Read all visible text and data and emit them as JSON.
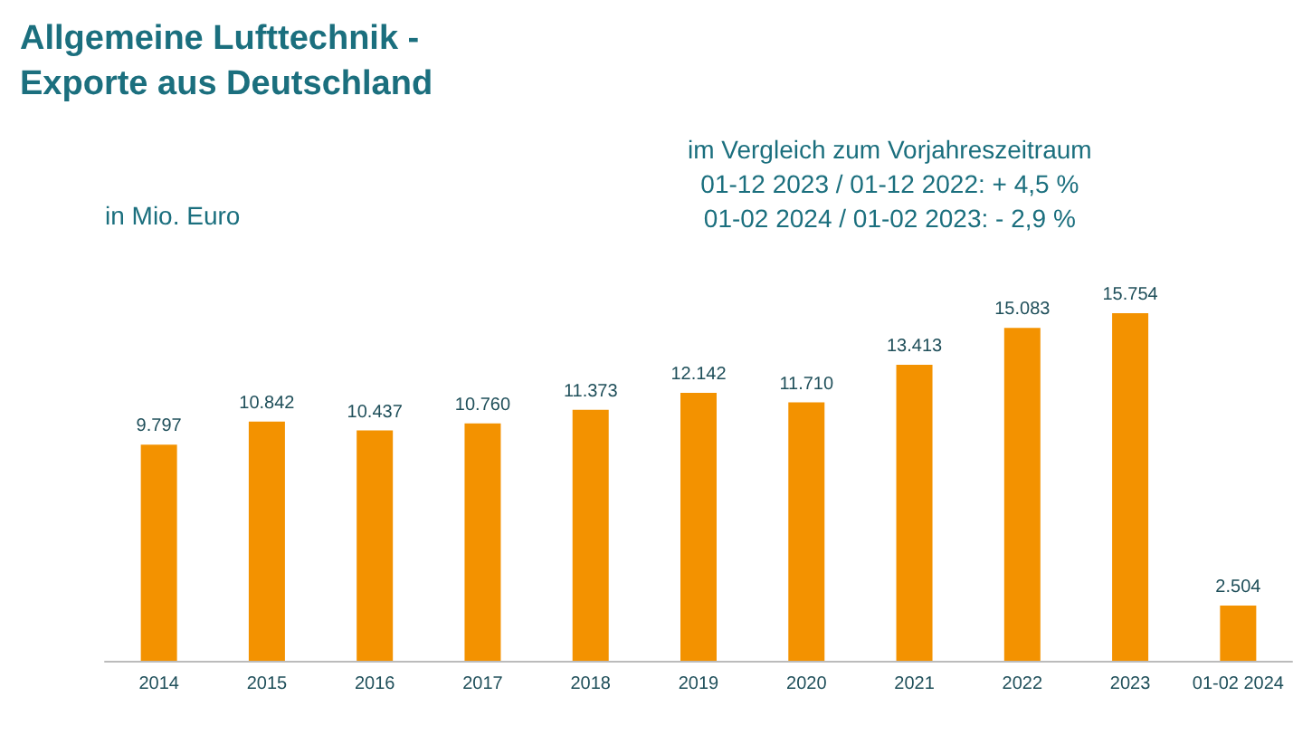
{
  "chart_data": {
    "type": "bar",
    "title": "Allgemeine Lufttechnik -\nExporte aus Deutschland",
    "ylabel": "in Mio. Euro",
    "annotations": [
      "im Vergleich zum Vorjahreszeitraum\n01-12 2023 / 01-12 2022: + 4,5 %\n01-02 2024 / 01-02 2023: - 2,9 %"
    ],
    "categories": [
      "2014",
      "2015",
      "2016",
      "2017",
      "2018",
      "2019",
      "2020",
      "2021",
      "2022",
      "2023",
      "01-02 2024"
    ],
    "values": [
      9797,
      10842,
      10437,
      10760,
      11373,
      12142,
      11710,
      13413,
      15083,
      15754,
      2504
    ],
    "value_labels": [
      "9.797",
      "10.842",
      "10.437",
      "10.760",
      "11.373",
      "12.142",
      "11.710",
      "13.413",
      "15.083",
      "15.754",
      "2.504"
    ],
    "color": "#f39200"
  }
}
